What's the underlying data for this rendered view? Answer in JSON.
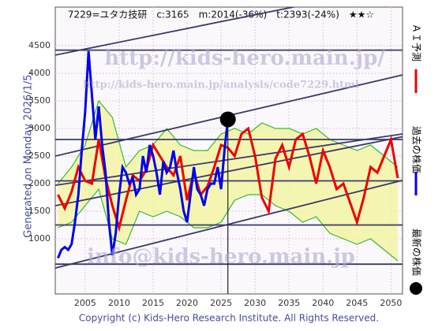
{
  "chart_data": {
    "type": "line",
    "title": "7229=ユタカ技研　c:3165　m:2014(-36%)　t:2393(-24%)　★★☆",
    "side_label": "Generated on Monday 2026/1/5.",
    "footer": "Copyright (c) Kids-Hero Research Institute. All Rights Reserved.",
    "watermarks": [
      "http://kids-hero.main.jp/",
      "http://kids-hero.main.jp/analysis/code7229.html",
      "info@kids-hero.main.jp"
    ],
    "xlim": [
      2000.6,
      2051.7
    ],
    "xticks": [
      2005,
      2010,
      2015,
      2020,
      2025,
      2030,
      2035,
      2040,
      2045,
      2050
    ],
    "ylim": [
      0,
      5200
    ],
    "yticks": [
      1000,
      1500,
      2000,
      2500,
      3000,
      3500,
      4000,
      4500
    ],
    "grid": true,
    "series": [
      {
        "name": "過去の株価",
        "color": "#0000ee",
        "x": [
          2001,
          2001.5,
          2002,
          2002.5,
          2003,
          2003.5,
          2004,
          2004.5,
          2005,
          2005.5,
          2006,
          2006.5,
          2007,
          2007.5,
          2008,
          2008.5,
          2009,
          2009.5,
          2010,
          2010.5,
          2011,
          2011.5,
          2012,
          2012.5,
          2013,
          2013.5,
          2014,
          2014.5,
          2015,
          2015.5,
          2016,
          2016.5,
          2017,
          2017.5,
          2018,
          2018.5,
          2019,
          2019.5,
          2020,
          2020.5,
          2021,
          2021.5,
          2022,
          2022.5,
          2023,
          2023.5,
          2024,
          2024.5,
          2025,
          2025.5,
          2026
        ],
        "values": [
          650,
          800,
          850,
          800,
          900,
          1300,
          1800,
          2600,
          3300,
          4400,
          3600,
          2800,
          3400,
          2700,
          2200,
          1300,
          700,
          1100,
          1800,
          2300,
          2200,
          2000,
          2100,
          1800,
          1900,
          2500,
          2200,
          2700,
          2500,
          2200,
          1800,
          2400,
          2200,
          2300,
          2600,
          2200,
          1900,
          1500,
          1300,
          1800,
          2300,
          1900,
          1800,
          1600,
          1900,
          2000,
          2000,
          2300,
          1900,
          2600,
          3165
        ]
      },
      {
        "name": "ＡＩ予測",
        "color": "#ee0000",
        "x": [
          2001,
          2002,
          2003,
          2004,
          2005,
          2006,
          2007,
          2008,
          2009,
          2010,
          2011,
          2012,
          2013,
          2014,
          2015,
          2016,
          2017,
          2018,
          2019,
          2020,
          2021,
          2022,
          2023,
          2024,
          2025,
          2026,
          2027,
          2028,
          2029,
          2030,
          2031,
          2032,
          2033,
          2034,
          2035,
          2036,
          2037,
          2038,
          2039,
          2040,
          2041,
          2042,
          2043,
          2044,
          2045,
          2046,
          2047,
          2048,
          2049,
          2050,
          2051
        ],
        "values": [
          1800,
          1550,
          1850,
          2300,
          2050,
          2000,
          2800,
          2100,
          1600,
          1200,
          1700,
          2150,
          2050,
          2250,
          2700,
          2500,
          2300,
          2150,
          2500,
          1700,
          2200,
          1800,
          1950,
          2300,
          2700,
          2650,
          2500,
          2900,
          3000,
          2500,
          1750,
          1500,
          2450,
          2700,
          2300,
          2800,
          2900,
          2500,
          2000,
          2600,
          2300,
          1900,
          2000,
          1650,
          1300,
          1750,
          2300,
          2200,
          2500,
          2800,
          2100
        ]
      }
    ],
    "band": {
      "color": "#33bb33",
      "fill": "#f4f4a0",
      "x": [
        2001,
        2003,
        2005,
        2007,
        2009,
        2011,
        2013,
        2015,
        2017,
        2019,
        2021,
        2023,
        2025,
        2027,
        2029,
        2031,
        2033,
        2035,
        2037,
        2039,
        2041,
        2043,
        2045,
        2047,
        2049,
        2051
      ],
      "upper": [
        2000,
        2300,
        2700,
        3500,
        3200,
        2300,
        2600,
        2700,
        3000,
        2700,
        2600,
        2600,
        2900,
        3000,
        2900,
        3100,
        3000,
        3000,
        2900,
        3000,
        2800,
        2700,
        2600,
        2700,
        2500,
        2300
      ],
      "lower": [
        1200,
        1300,
        1600,
        1900,
        1000,
        900,
        1500,
        1400,
        1500,
        1400,
        1200,
        1200,
        1300,
        1700,
        1800,
        1800,
        1600,
        1500,
        1300,
        1400,
        1100,
        1000,
        900,
        1000,
        800,
        600
      ]
    },
    "levels": [
      4420,
      2800,
      2050,
      1250,
      540
    ],
    "trend_lines": [
      {
        "x": [
          2000.6,
          2051.7
        ],
        "y": [
          4330,
          5600
        ]
      },
      {
        "x": [
          2000.6,
          2051.7
        ],
        "y": [
          2500,
          3970
        ]
      },
      {
        "x": [
          2000.6,
          2051.7
        ],
        "y": [
          1970,
          2900
        ]
      },
      {
        "x": [
          2000.6,
          2051.7
        ],
        "y": [
          1600,
          2850
        ]
      },
      {
        "x": [
          2000.6,
          2051.7
        ],
        "y": [
          470,
          2060
        ]
      }
    ],
    "latest": {
      "name": "最新の株価",
      "color": "#000000",
      "x": 2026,
      "value": 3165
    }
  }
}
